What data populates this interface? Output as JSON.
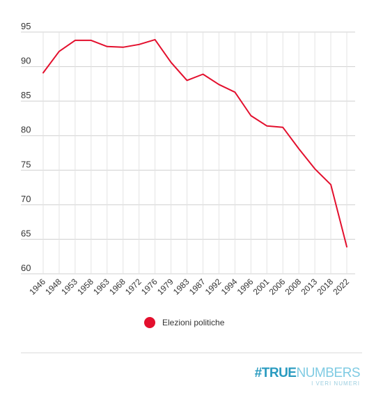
{
  "chart_data": {
    "type": "line",
    "title": "",
    "xlabel": "",
    "ylabel": "",
    "categories": [
      "1946",
      "1948",
      "1953",
      "1958",
      "1963",
      "1968",
      "1972",
      "1976",
      "1979",
      "1983",
      "1987",
      "1992",
      "1994",
      "1996",
      "2001",
      "2006",
      "2008",
      "2013",
      "2018",
      "2022"
    ],
    "series": [
      {
        "name": "Elezioni politiche",
        "color": "#e30f2d",
        "values": [
          89.1,
          92.2,
          93.8,
          93.8,
          92.9,
          92.8,
          93.2,
          93.9,
          90.6,
          88.0,
          88.9,
          87.4,
          86.3,
          82.9,
          81.4,
          81.2,
          78.1,
          75.2,
          72.9,
          63.9
        ]
      }
    ],
    "ylim": [
      60,
      95
    ],
    "yticks": [
      60,
      65,
      70,
      75,
      80,
      85,
      90,
      95
    ],
    "grid": true,
    "legend_position": "bottom-center"
  },
  "legend": {
    "label": "Elezioni politiche",
    "color": "#e30f2d"
  },
  "brand": {
    "hash": "#",
    "bold": "TRUE",
    "light": "NUMBERS",
    "tagline": "I VERI NUMERI"
  }
}
